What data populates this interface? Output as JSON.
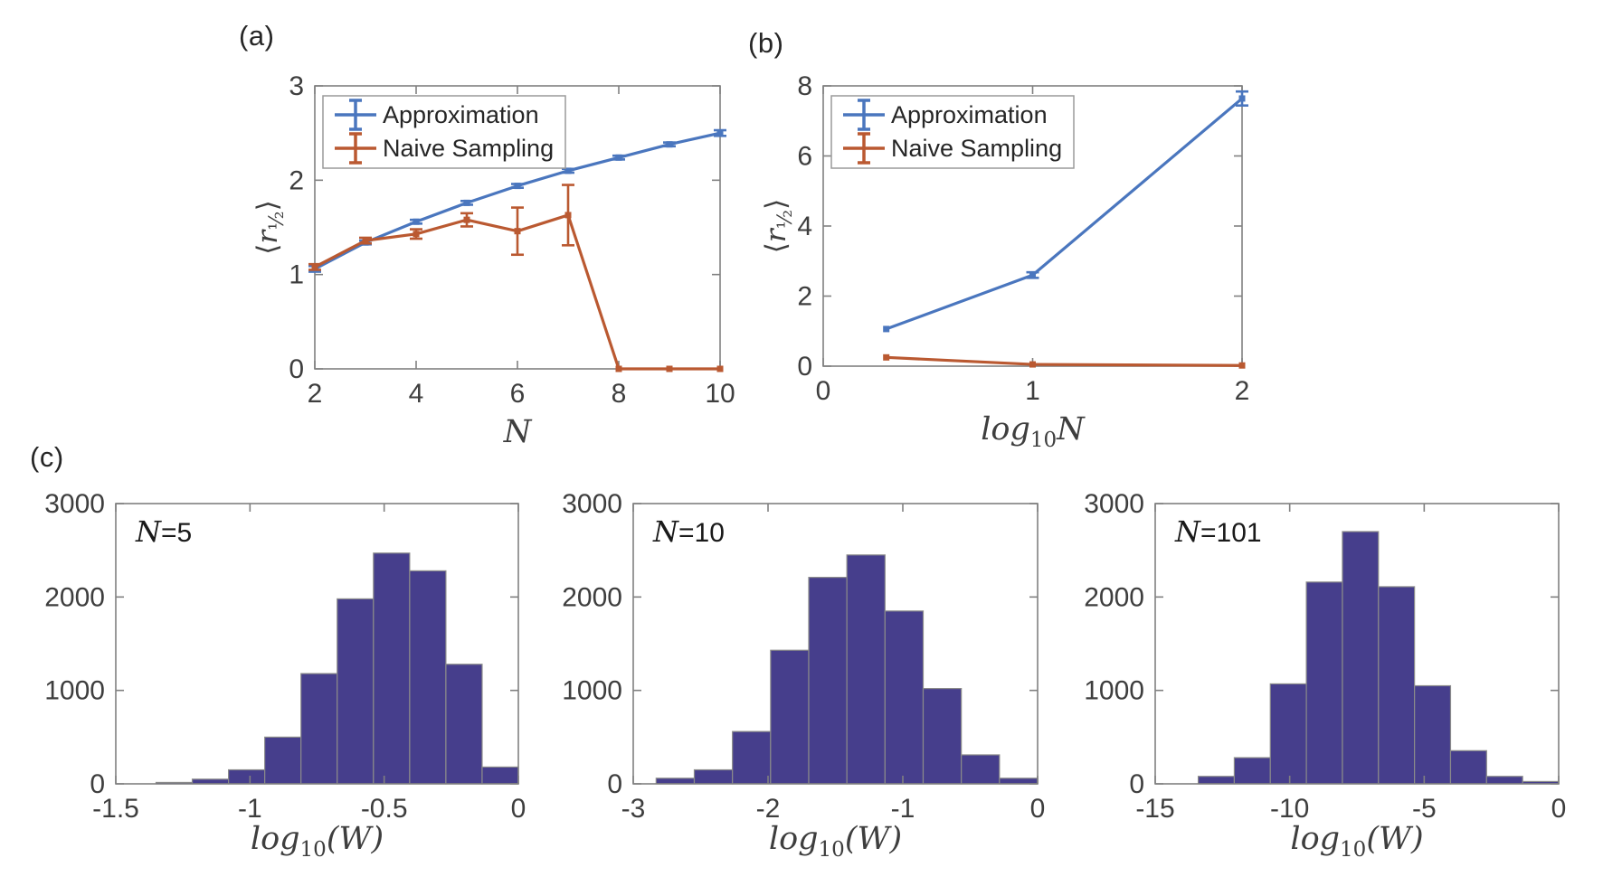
{
  "panel_labels": {
    "a": "(a)",
    "b": "(b)",
    "c": "(c)"
  },
  "colors": {
    "approximation": "#4A76BE",
    "naive": "#BA5931",
    "histogram_fill": "#463E8C",
    "histogram_edge": "#8A8A8A",
    "axis": "#808080",
    "tick_text": "#3E3E3E",
    "label_text": "#262626",
    "legend_edge": "#9A9A9A",
    "background": "#FFFFFF"
  },
  "chart_data": [
    {
      "id": "a",
      "type": "line",
      "xlabel": "N",
      "ylabel": "⟨r½⟩",
      "xlim": [
        2,
        10
      ],
      "ylim": [
        0,
        3
      ],
      "xticks": [
        2,
        4,
        6,
        8,
        10
      ],
      "yticks": [
        0,
        1,
        2,
        3
      ],
      "x": [
        2,
        3,
        4,
        5,
        6,
        7,
        8,
        9,
        10
      ],
      "series": [
        {
          "name": "Approximation",
          "color_key": "approximation",
          "values": [
            1.06,
            1.34,
            1.56,
            1.76,
            1.94,
            2.1,
            2.24,
            2.38,
            2.5
          ],
          "yerr": [
            0.03,
            0.02,
            0.02,
            0.02,
            0.02,
            0.02,
            0.02,
            0.02,
            0.03
          ]
        },
        {
          "name": "Naive Sampling",
          "color_key": "naive",
          "values": [
            1.08,
            1.36,
            1.43,
            1.58,
            1.46,
            1.63,
            0,
            0,
            0
          ],
          "yerr": [
            0.03,
            0.03,
            0.05,
            0.07,
            0.25,
            0.32,
            0,
            0,
            0
          ]
        }
      ],
      "legend": [
        "Approximation",
        "Naive Sampling"
      ],
      "legend_position": "top-left",
      "grid": false
    },
    {
      "id": "b",
      "type": "line",
      "xlabel": "log10N",
      "ylabel": "⟨r½⟩",
      "xlim": [
        0,
        2
      ],
      "ylim": [
        0,
        8
      ],
      "xticks": [
        0,
        1,
        2
      ],
      "yticks": [
        0,
        2,
        4,
        6,
        8
      ],
      "x": [
        0.301,
        1,
        2
      ],
      "series": [
        {
          "name": "Approximation",
          "color_key": "approximation",
          "values": [
            1.06,
            2.6,
            7.64
          ],
          "yerr": [
            0.05,
            0.08,
            0.2
          ]
        },
        {
          "name": "Naive Sampling",
          "color_key": "naive",
          "values": [
            0.25,
            0.05,
            0.02
          ],
          "yerr": [
            0.02,
            0.01,
            0.01
          ]
        }
      ],
      "legend": [
        "Approximation",
        "Naive Sampling"
      ],
      "legend_position": "top-left",
      "grid": false
    },
    {
      "id": "c1",
      "type": "histogram",
      "annotation": "N=5",
      "xlabel": "log10(W)",
      "ylabel": "",
      "xlim": [
        -1.5,
        0
      ],
      "ylim": [
        0,
        3000
      ],
      "xticks": [
        -1.5,
        -1,
        -0.5,
        0
      ],
      "yticks": [
        0,
        1000,
        2000,
        3000
      ],
      "bin_start": -1.35,
      "bin_width": 0.135,
      "values": [
        15,
        50,
        150,
        500,
        1180,
        1980,
        2470,
        2280,
        1280,
        180
      ],
      "grid": false
    },
    {
      "id": "c2",
      "type": "histogram",
      "annotation": "N=10",
      "xlabel": "log10(W)",
      "ylabel": "",
      "xlim": [
        -3,
        0
      ],
      "ylim": [
        0,
        3000
      ],
      "xticks": [
        -3,
        -2,
        -1,
        0
      ],
      "yticks": [
        0,
        1000,
        2000,
        3000
      ],
      "bin_start": -2.83,
      "bin_width": 0.283,
      "values": [
        60,
        150,
        560,
        1430,
        2210,
        2450,
        1850,
        1020,
        310,
        60
      ],
      "grid": false
    },
    {
      "id": "c3",
      "type": "histogram",
      "annotation": "N=101",
      "xlabel": "log10(W)",
      "ylabel": "",
      "xlim": [
        -15,
        0
      ],
      "ylim": [
        0,
        3000
      ],
      "xticks": [
        -15,
        -10,
        -5,
        0
      ],
      "yticks": [
        0,
        1000,
        2000,
        3000
      ],
      "bin_start": -13.4,
      "bin_width": 1.34,
      "values": [
        80,
        280,
        1070,
        2160,
        2700,
        2110,
        1050,
        355,
        80,
        25
      ],
      "grid": false
    }
  ]
}
